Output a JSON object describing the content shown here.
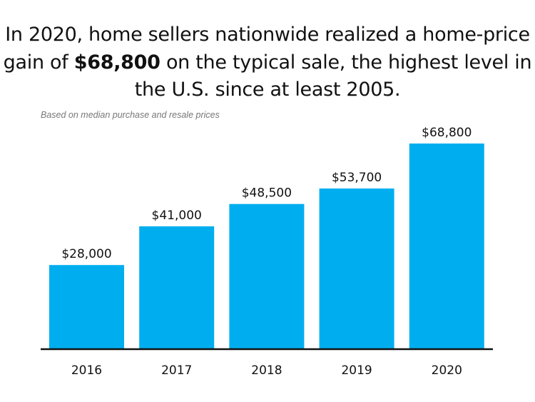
{
  "chart_data": {
    "type": "bar",
    "title_parts": [
      "In 2020, home sellers nationwide realized a home-price gain of ",
      "$68,800",
      " on the typical sale, the highest level in the U.S. since at least 2005."
    ],
    "subtitle": "Based on median purchase and resale prices",
    "categories": [
      "2016",
      "2017",
      "2018",
      "2019",
      "2020"
    ],
    "values": [
      28000,
      41000,
      48500,
      53700,
      68800
    ],
    "data_labels": [
      "$28,000",
      "$41,000",
      "$48,500",
      "$53,700",
      "$68,800"
    ],
    "xlabel": "",
    "ylabel": "",
    "ylim": [
      0,
      68800
    ],
    "grid": false,
    "bar_color": "#00aeef"
  }
}
